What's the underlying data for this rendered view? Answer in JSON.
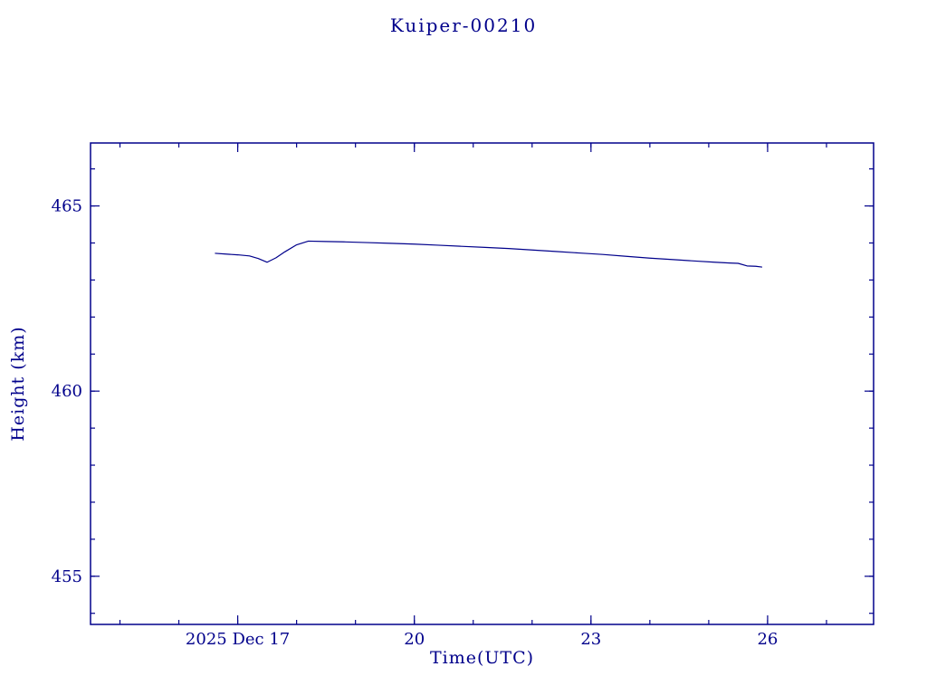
{
  "chart_data": {
    "type": "line",
    "title": "Kuiper-00210",
    "xlabel": "Time(UTC)",
    "ylabel": "Height (km)",
    "x_date_context": "2025 Dec (day of month, UTC)",
    "line_color": "#00008B",
    "frame_color": "#00008B",
    "background": "#ffffff",
    "grid": false,
    "legend": "none",
    "xlim": [
      14.5,
      27.8
    ],
    "ylim": [
      453.7,
      466.7
    ],
    "x_ticks": [
      {
        "value": 17,
        "label": "2025 Dec 17"
      },
      {
        "value": 20,
        "label": "20"
      },
      {
        "value": 23,
        "label": "23"
      },
      {
        "value": 26,
        "label": "26"
      }
    ],
    "y_ticks": [
      {
        "value": 455,
        "label": "455"
      },
      {
        "value": 460,
        "label": "460"
      },
      {
        "value": 465,
        "label": "465"
      }
    ],
    "x_minor_step": 1,
    "y_minor_step": 1,
    "series": [
      {
        "name": "height",
        "x": [
          16.62,
          16.8,
          17.0,
          17.2,
          17.35,
          17.5,
          17.65,
          17.8,
          18.0,
          18.2,
          18.5,
          18.8,
          19.2,
          19.6,
          20.0,
          20.4,
          20.8,
          21.2,
          21.6,
          22.0,
          22.4,
          22.8,
          23.2,
          23.6,
          24.0,
          24.4,
          24.8,
          25.1,
          25.35,
          25.5,
          25.65,
          25.8,
          25.9
        ],
        "y": [
          463.72,
          463.7,
          463.68,
          463.65,
          463.58,
          463.48,
          463.6,
          463.76,
          463.95,
          464.05,
          464.04,
          464.03,
          464.01,
          463.99,
          463.97,
          463.94,
          463.91,
          463.88,
          463.85,
          463.81,
          463.77,
          463.73,
          463.69,
          463.64,
          463.59,
          463.55,
          463.51,
          463.48,
          463.46,
          463.45,
          463.38,
          463.37,
          463.35
        ]
      }
    ]
  }
}
